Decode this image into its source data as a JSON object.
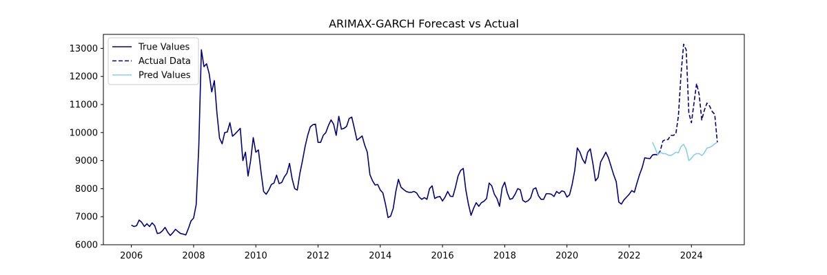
{
  "chart_data": {
    "type": "line",
    "title": "ARIMAX-GARCH Forecast vs Actual",
    "xlabel": "",
    "ylabel": "",
    "x_ticks": [
      "2006",
      "2008",
      "2010",
      "2012",
      "2014",
      "2016",
      "2018",
      "2020",
      "2022",
      "2024"
    ],
    "y_ticks": [
      "6000",
      "7000",
      "8000",
      "9000",
      "10000",
      "11000",
      "12000",
      "13000"
    ],
    "xlim": [
      2005.1,
      2025.7
    ],
    "ylim": [
      6000,
      13500
    ],
    "grid": false,
    "legend_position": "upper-left",
    "colors": {
      "true_values": "#00007f",
      "actual_data": "#00007f",
      "pred_values": "#87ceeb"
    },
    "series": [
      {
        "name": "True Values",
        "style": "solid",
        "points": [
          [
            2006.0,
            6700
          ],
          [
            2006.083,
            6650
          ],
          [
            2006.167,
            6680
          ],
          [
            2006.25,
            6880
          ],
          [
            2006.333,
            6800
          ],
          [
            2006.417,
            6650
          ],
          [
            2006.5,
            6750
          ],
          [
            2006.583,
            6650
          ],
          [
            2006.667,
            6780
          ],
          [
            2006.75,
            6680
          ],
          [
            2006.833,
            6400
          ],
          [
            2006.917,
            6420
          ],
          [
            2007.0,
            6500
          ],
          [
            2007.083,
            6620
          ],
          [
            2007.167,
            6450
          ],
          [
            2007.25,
            6330
          ],
          [
            2007.333,
            6430
          ],
          [
            2007.417,
            6550
          ],
          [
            2007.5,
            6470
          ],
          [
            2007.583,
            6400
          ],
          [
            2007.667,
            6380
          ],
          [
            2007.75,
            6350
          ],
          [
            2007.833,
            6580
          ],
          [
            2007.917,
            6850
          ],
          [
            2008.0,
            6950
          ],
          [
            2008.083,
            7430
          ],
          [
            2008.167,
            9500
          ],
          [
            2008.25,
            12950
          ],
          [
            2008.333,
            12350
          ],
          [
            2008.417,
            12450
          ],
          [
            2008.5,
            12100
          ],
          [
            2008.583,
            11450
          ],
          [
            2008.667,
            11850
          ],
          [
            2008.75,
            10700
          ],
          [
            2008.833,
            9800
          ],
          [
            2008.917,
            9600
          ],
          [
            2009.0,
            10000
          ],
          [
            2009.083,
            10020
          ],
          [
            2009.167,
            10350
          ],
          [
            2009.25,
            9870
          ],
          [
            2009.333,
            9950
          ],
          [
            2009.417,
            10050
          ],
          [
            2009.5,
            10150
          ],
          [
            2009.583,
            9000
          ],
          [
            2009.667,
            9300
          ],
          [
            2009.75,
            8450
          ],
          [
            2009.833,
            9000
          ],
          [
            2009.917,
            9820
          ],
          [
            2010.0,
            9300
          ],
          [
            2010.083,
            9380
          ],
          [
            2010.167,
            8600
          ],
          [
            2010.25,
            7900
          ],
          [
            2010.333,
            7800
          ],
          [
            2010.417,
            7950
          ],
          [
            2010.5,
            8150
          ],
          [
            2010.583,
            8200
          ],
          [
            2010.667,
            8480
          ],
          [
            2010.75,
            8180
          ],
          [
            2010.833,
            8220
          ],
          [
            2010.917,
            8420
          ],
          [
            2011.0,
            8550
          ],
          [
            2011.083,
            8900
          ],
          [
            2011.167,
            8350
          ],
          [
            2011.25,
            8000
          ],
          [
            2011.333,
            7950
          ],
          [
            2011.417,
            8550
          ],
          [
            2011.5,
            9000
          ],
          [
            2011.583,
            9500
          ],
          [
            2011.667,
            9900
          ],
          [
            2011.75,
            10200
          ],
          [
            2011.833,
            10280
          ],
          [
            2011.917,
            10300
          ],
          [
            2012.0,
            9650
          ],
          [
            2012.083,
            9650
          ],
          [
            2012.167,
            9900
          ],
          [
            2012.25,
            10000
          ],
          [
            2012.333,
            10250
          ],
          [
            2012.417,
            10450
          ],
          [
            2012.5,
            10300
          ],
          [
            2012.583,
            9900
          ],
          [
            2012.667,
            10580
          ],
          [
            2012.75,
            10120
          ],
          [
            2012.833,
            10150
          ],
          [
            2012.917,
            10220
          ],
          [
            2013.0,
            10500
          ],
          [
            2013.083,
            10550
          ],
          [
            2013.167,
            10150
          ],
          [
            2013.25,
            9730
          ],
          [
            2013.333,
            9800
          ],
          [
            2013.417,
            9880
          ],
          [
            2013.5,
            9550
          ],
          [
            2013.583,
            9300
          ],
          [
            2013.667,
            8500
          ],
          [
            2013.75,
            8280
          ],
          [
            2013.833,
            8130
          ],
          [
            2013.917,
            8150
          ],
          [
            2014.0,
            7950
          ],
          [
            2014.083,
            7850
          ],
          [
            2014.167,
            7450
          ],
          [
            2014.25,
            6970
          ],
          [
            2014.333,
            7020
          ],
          [
            2014.417,
            7300
          ],
          [
            2014.5,
            7900
          ],
          [
            2014.583,
            8330
          ],
          [
            2014.667,
            8050
          ],
          [
            2014.75,
            7970
          ],
          [
            2014.833,
            7900
          ],
          [
            2014.917,
            7870
          ],
          [
            2015.0,
            7870
          ],
          [
            2015.083,
            7900
          ],
          [
            2015.167,
            7850
          ],
          [
            2015.25,
            7700
          ],
          [
            2015.333,
            7620
          ],
          [
            2015.417,
            7680
          ],
          [
            2015.5,
            7620
          ],
          [
            2015.583,
            8000
          ],
          [
            2015.667,
            8100
          ],
          [
            2015.75,
            7650
          ],
          [
            2015.833,
            7700
          ],
          [
            2015.917,
            7720
          ],
          [
            2016.0,
            7560
          ],
          [
            2016.083,
            7700
          ],
          [
            2016.167,
            7900
          ],
          [
            2016.25,
            7730
          ],
          [
            2016.333,
            7720
          ],
          [
            2016.417,
            8050
          ],
          [
            2016.5,
            8450
          ],
          [
            2016.583,
            8650
          ],
          [
            2016.667,
            8720
          ],
          [
            2016.75,
            7950
          ],
          [
            2016.833,
            7450
          ],
          [
            2016.917,
            7050
          ],
          [
            2017.0,
            7300
          ],
          [
            2017.083,
            7500
          ],
          [
            2017.167,
            7370
          ],
          [
            2017.25,
            7500
          ],
          [
            2017.333,
            7550
          ],
          [
            2017.417,
            7650
          ],
          [
            2017.5,
            8200
          ],
          [
            2017.583,
            8100
          ],
          [
            2017.667,
            7800
          ],
          [
            2017.75,
            7650
          ],
          [
            2017.833,
            7370
          ],
          [
            2017.917,
            8030
          ],
          [
            2018.0,
            8230
          ],
          [
            2018.083,
            7850
          ],
          [
            2018.167,
            7620
          ],
          [
            2018.25,
            7650
          ],
          [
            2018.333,
            7800
          ],
          [
            2018.417,
            8000
          ],
          [
            2018.5,
            7960
          ],
          [
            2018.583,
            7580
          ],
          [
            2018.667,
            7520
          ],
          [
            2018.75,
            7570
          ],
          [
            2018.833,
            7670
          ],
          [
            2018.917,
            7980
          ],
          [
            2019.0,
            8030
          ],
          [
            2019.083,
            7750
          ],
          [
            2019.167,
            7620
          ],
          [
            2019.25,
            7620
          ],
          [
            2019.333,
            7820
          ],
          [
            2019.417,
            7820
          ],
          [
            2019.5,
            7800
          ],
          [
            2019.583,
            7720
          ],
          [
            2019.667,
            7900
          ],
          [
            2019.75,
            7830
          ],
          [
            2019.833,
            7920
          ],
          [
            2019.917,
            7890
          ],
          [
            2020.0,
            7700
          ],
          [
            2020.083,
            7780
          ],
          [
            2020.167,
            8150
          ],
          [
            2020.25,
            8650
          ],
          [
            2020.333,
            9450
          ],
          [
            2020.417,
            9300
          ],
          [
            2020.5,
            9050
          ],
          [
            2020.583,
            8900
          ],
          [
            2020.667,
            9300
          ],
          [
            2020.75,
            9420
          ],
          [
            2020.833,
            8900
          ],
          [
            2020.917,
            8280
          ],
          [
            2021.0,
            8400
          ],
          [
            2021.083,
            8950
          ],
          [
            2021.167,
            9120
          ],
          [
            2021.25,
            9300
          ],
          [
            2021.333,
            9100
          ],
          [
            2021.417,
            8800
          ],
          [
            2021.5,
            8500
          ],
          [
            2021.583,
            8250
          ],
          [
            2021.667,
            7520
          ],
          [
            2021.75,
            7450
          ],
          [
            2021.833,
            7600
          ],
          [
            2021.917,
            7700
          ],
          [
            2022.0,
            7800
          ],
          [
            2022.083,
            7930
          ],
          [
            2022.167,
            7870
          ],
          [
            2022.25,
            8200
          ],
          [
            2022.333,
            8500
          ],
          [
            2022.417,
            8750
          ],
          [
            2022.5,
            9100
          ],
          [
            2022.583,
            9080
          ],
          [
            2022.667,
            9070
          ],
          [
            2022.75,
            9200
          ],
          [
            2022.833,
            9220
          ],
          [
            2022.917,
            9200
          ]
        ]
      },
      {
        "name": "Actual Data",
        "style": "dashed",
        "points": [
          [
            2022.75,
            9200
          ],
          [
            2022.833,
            9220
          ],
          [
            2022.917,
            9200
          ],
          [
            2023.0,
            9350
          ],
          [
            2023.083,
            9700
          ],
          [
            2023.167,
            9750
          ],
          [
            2023.25,
            9750
          ],
          [
            2023.333,
            9900
          ],
          [
            2023.417,
            9900
          ],
          [
            2023.5,
            9950
          ],
          [
            2023.583,
            10600
          ],
          [
            2023.667,
            12100
          ],
          [
            2023.75,
            13150
          ],
          [
            2023.833,
            12950
          ],
          [
            2023.917,
            10700
          ],
          [
            2024.0,
            10350
          ],
          [
            2024.083,
            11050
          ],
          [
            2024.167,
            11750
          ],
          [
            2024.25,
            11350
          ],
          [
            2024.333,
            10450
          ],
          [
            2024.417,
            10800
          ],
          [
            2024.5,
            11050
          ],
          [
            2024.583,
            10950
          ],
          [
            2024.667,
            10750
          ],
          [
            2024.75,
            10650
          ],
          [
            2024.833,
            9650
          ]
        ]
      },
      {
        "name": "Pred Values",
        "style": "solid",
        "points": [
          [
            2022.75,
            9650
          ],
          [
            2022.833,
            9450
          ],
          [
            2022.917,
            9200
          ],
          [
            2023.0,
            9300
          ],
          [
            2023.083,
            9250
          ],
          [
            2023.167,
            9250
          ],
          [
            2023.25,
            9200
          ],
          [
            2023.333,
            9180
          ],
          [
            2023.417,
            9230
          ],
          [
            2023.5,
            9300
          ],
          [
            2023.583,
            9280
          ],
          [
            2023.667,
            9500
          ],
          [
            2023.75,
            9580
          ],
          [
            2023.833,
            9400
          ],
          [
            2023.917,
            9000
          ],
          [
            2024.0,
            9080
          ],
          [
            2024.083,
            9200
          ],
          [
            2024.167,
            9250
          ],
          [
            2024.25,
            9250
          ],
          [
            2024.333,
            9180
          ],
          [
            2024.417,
            9280
          ],
          [
            2024.5,
            9450
          ],
          [
            2024.583,
            9470
          ],
          [
            2024.667,
            9520
          ],
          [
            2024.75,
            9600
          ],
          [
            2024.833,
            9650
          ]
        ]
      }
    ]
  }
}
